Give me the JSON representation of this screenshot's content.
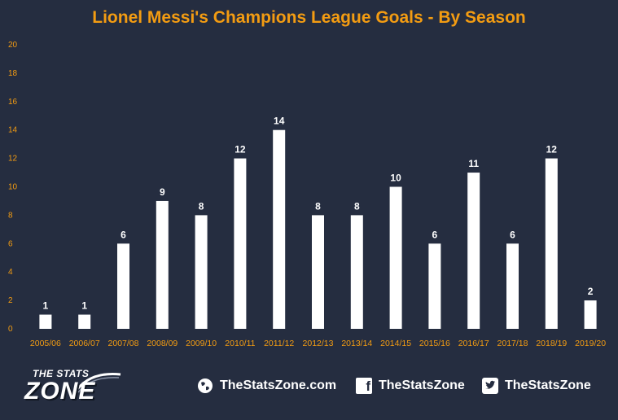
{
  "chart_data": {
    "type": "bar",
    "title": "Lionel Messi's Champions League Goals - By Season",
    "categories": [
      "2005/06",
      "2006/07",
      "2007/08",
      "2008/09",
      "2009/10",
      "2010/11",
      "2011/12",
      "2012/13",
      "2013/14",
      "2014/15",
      "2015/16",
      "2016/17",
      "2017/18",
      "2018/19",
      "2019/20"
    ],
    "values": [
      1,
      1,
      6,
      9,
      8,
      12,
      14,
      8,
      8,
      10,
      6,
      11,
      6,
      12,
      2
    ],
    "ylim": [
      0,
      20
    ],
    "yticks": [
      0,
      2,
      4,
      6,
      8,
      10,
      12,
      14,
      16,
      18,
      20
    ],
    "xlabel": "",
    "ylabel": "",
    "grid": false,
    "bar_color": "#ffffff",
    "label_color": "#ffffff",
    "tick_color": "#f39c12",
    "background": "#252d40"
  },
  "footer": {
    "logo_top": "THE STATS",
    "logo_main": "ZONE",
    "website": "TheStatsZone.com",
    "facebook": "TheStatsZone",
    "twitter": "TheStatsZone"
  }
}
